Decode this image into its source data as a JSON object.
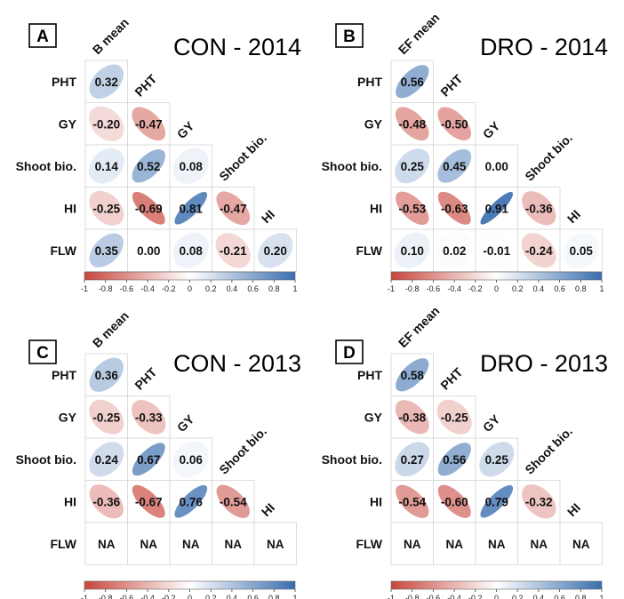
{
  "figure": {
    "colorbar_ticks": [
      "-1",
      "-0.8",
      "-0.6",
      "-0.4",
      "-0.2",
      "0",
      "0.2",
      "0.4",
      "0.6",
      "0.8",
      "1"
    ],
    "colors": {
      "negative": "#C8463C",
      "neutral": "#FFFFFF",
      "positive": "#3A6EAF"
    }
  },
  "chart_data": [
    {
      "type": "heatmap",
      "panel": "A",
      "title": "CON - 2014",
      "row_labels": [
        "PHT",
        "GY",
        "Shoot bio.",
        "HI",
        "FLW"
      ],
      "col_labels": [
        "B mean",
        "PHT",
        "GY",
        "Shoot bio.",
        "HI"
      ],
      "matrix": [
        [
          0.32
        ],
        [
          -0.2,
          -0.47
        ],
        [
          0.14,
          0.52,
          0.08
        ],
        [
          -0.25,
          -0.69,
          0.81,
          -0.47
        ],
        [
          0.35,
          0.0,
          0.08,
          -0.21,
          0.2
        ]
      ],
      "labels": [
        [
          "0.32"
        ],
        [
          "-0.20",
          "-0.47"
        ],
        [
          "0.14",
          "0.52",
          "0.08"
        ],
        [
          "-0.25",
          "-0.69",
          "0.81",
          "-0.47"
        ],
        [
          "0.35",
          "0.00",
          "0.08",
          "-0.21",
          "0.20"
        ]
      ],
      "colorbar_range": [
        -1,
        1
      ]
    },
    {
      "type": "heatmap",
      "panel": "B",
      "title": "DRO - 2014",
      "row_labels": [
        "PHT",
        "GY",
        "Shoot bio.",
        "HI",
        "FLW"
      ],
      "col_labels": [
        "EF mean",
        "PHT",
        "GY",
        "Shoot bio.",
        "HI"
      ],
      "matrix": [
        [
          0.56
        ],
        [
          -0.48,
          -0.5
        ],
        [
          0.25,
          0.45,
          0.0
        ],
        [
          -0.53,
          -0.63,
          0.91,
          -0.36
        ],
        [
          0.1,
          0.02,
          -0.01,
          -0.24,
          0.05
        ]
      ],
      "labels": [
        [
          "0.56"
        ],
        [
          "-0.48",
          "-0.50"
        ],
        [
          "0.25",
          "0.45",
          "0.00"
        ],
        [
          "-0.53",
          "-0.63",
          "0.91",
          "-0.36"
        ],
        [
          "0.10",
          "0.02",
          "-0.01",
          "-0.24",
          "0.05"
        ]
      ],
      "colorbar_range": [
        -1,
        1
      ]
    },
    {
      "type": "heatmap",
      "panel": "C",
      "title": "CON - 2013",
      "row_labels": [
        "PHT",
        "GY",
        "Shoot bio.",
        "HI",
        "FLW"
      ],
      "col_labels": [
        "B mean",
        "PHT",
        "GY",
        "Shoot bio.",
        "HI"
      ],
      "matrix": [
        [
          0.36
        ],
        [
          -0.25,
          -0.33
        ],
        [
          0.24,
          0.67,
          0.06
        ],
        [
          -0.36,
          -0.67,
          0.76,
          -0.54
        ],
        [
          null,
          null,
          null,
          null,
          null
        ]
      ],
      "labels": [
        [
          "0.36"
        ],
        [
          "-0.25",
          "-0.33"
        ],
        [
          "0.24",
          "0.67",
          "0.06"
        ],
        [
          "-0.36",
          "-0.67",
          "0.76",
          "-0.54"
        ],
        [
          "NA",
          "NA",
          "NA",
          "NA",
          "NA"
        ]
      ],
      "colorbar_range": [
        -1,
        1
      ]
    },
    {
      "type": "heatmap",
      "panel": "D",
      "title": "DRO - 2013",
      "row_labels": [
        "PHT",
        "GY",
        "Shoot bio.",
        "HI",
        "FLW"
      ],
      "col_labels": [
        "EF mean",
        "PHT",
        "GY",
        "Shoot bio.",
        "HI"
      ],
      "matrix": [
        [
          0.58
        ],
        [
          -0.38,
          -0.25
        ],
        [
          0.27,
          0.56,
          0.25
        ],
        [
          -0.54,
          -0.6,
          0.79,
          -0.32
        ],
        [
          null,
          null,
          null,
          null,
          null
        ]
      ],
      "labels": [
        [
          "0.58"
        ],
        [
          "-0.38",
          "-0.25"
        ],
        [
          "0.27",
          "0.56",
          "0.25"
        ],
        [
          "-0.54",
          "-0.60",
          "0.79",
          "-0.32"
        ],
        [
          "NA",
          "NA",
          "NA",
          "NA",
          "NA"
        ]
      ],
      "colorbar_range": [
        -1,
        1
      ]
    }
  ]
}
